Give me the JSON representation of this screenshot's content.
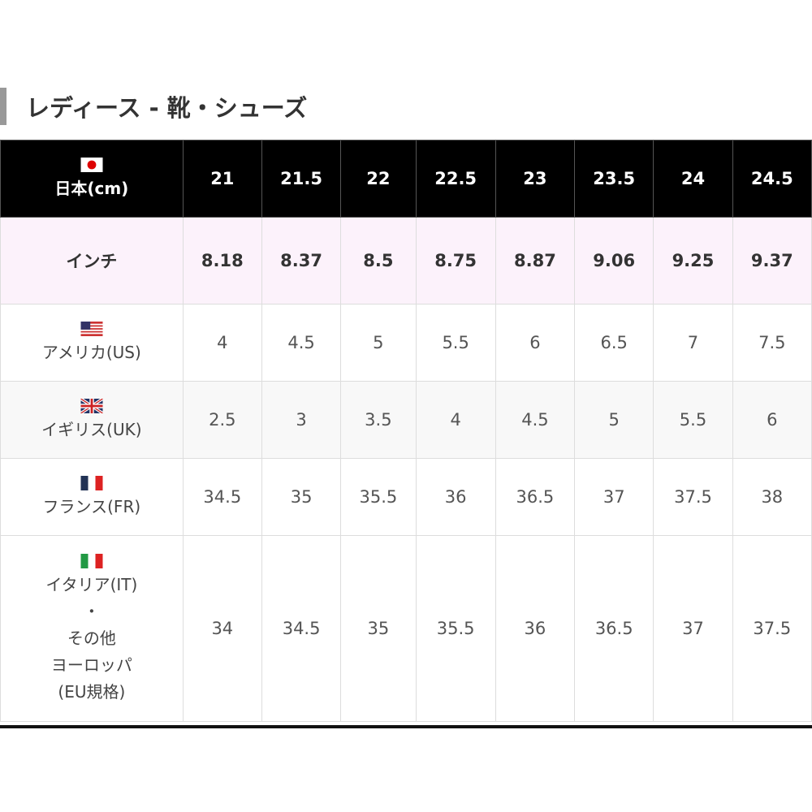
{
  "title": "レディース - 靴・シューズ",
  "header": {
    "label": "日本(cm)",
    "flag": "japan-flag-icon",
    "sizes": [
      "21",
      "21.5",
      "22",
      "22.5",
      "23",
      "23.5",
      "24",
      "24.5"
    ]
  },
  "rows": [
    {
      "label": "インチ",
      "values": [
        "8.18",
        "8.37",
        "8.5",
        "8.75",
        "8.87",
        "9.06",
        "9.25",
        "9.37"
      ]
    },
    {
      "label": "アメリカ(US)",
      "flag": "us-flag-icon",
      "values": [
        "4",
        "4.5",
        "5",
        "5.5",
        "6",
        "6.5",
        "7",
        "7.5"
      ]
    },
    {
      "label": "イギリス(UK)",
      "flag": "uk-flag-icon",
      "values": [
        "2.5",
        "3",
        "3.5",
        "4",
        "4.5",
        "5",
        "5.5",
        "6"
      ]
    },
    {
      "label": "フランス(FR)",
      "flag": "france-flag-icon",
      "values": [
        "34.5",
        "35",
        "35.5",
        "36",
        "36.5",
        "37",
        "37.5",
        "38"
      ]
    },
    {
      "label_lines": [
        "イタリア(IT)",
        "・",
        "その他",
        "ヨーロッパ",
        "(EU規格)"
      ],
      "flag": "italy-flag-icon",
      "values": [
        "34",
        "34.5",
        "35",
        "35.5",
        "36",
        "36.5",
        "37",
        "37.5"
      ]
    }
  ]
}
